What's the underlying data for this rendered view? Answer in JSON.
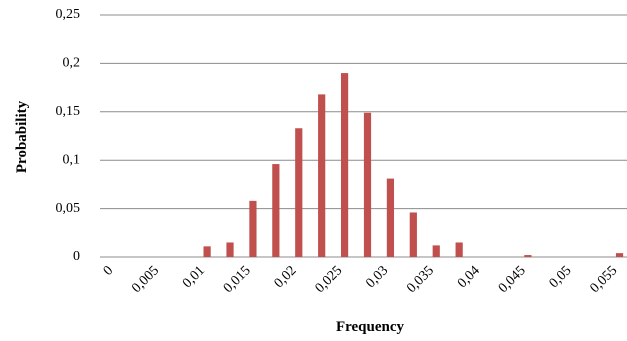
{
  "chart_data": {
    "type": "bar",
    "x_label": "Frequency",
    "y_label": "Probability",
    "categories": [
      "0",
      null,
      "0,005",
      null,
      "0,01",
      null,
      "0,015",
      null,
      "0,02",
      null,
      "0,025",
      null,
      "0,03",
      null,
      "0,035",
      null,
      "0,04",
      null,
      "0,045",
      null,
      "0,05",
      null,
      "0,055"
    ],
    "values": [
      0,
      0,
      0,
      0,
      0.011,
      0.015,
      0.058,
      0.096,
      0.133,
      0.168,
      0.19,
      0.149,
      0.081,
      0.046,
      0.012,
      0.015,
      0,
      0,
      0.002,
      0,
      0,
      0,
      0.004
    ],
    "color": "#c0504d",
    "ylim": [
      0,
      0.25
    ],
    "yticks": [
      0,
      {
        "value": 0.05,
        "label": "0,05"
      },
      {
        "value": 0.1,
        "label": "0,1"
      },
      {
        "value": 0.15,
        "label": "0,15"
      },
      {
        "value": 0.2,
        "label": "0,2"
      },
      {
        "value": 0.25,
        "label": "0,25"
      }
    ],
    "grid": true
  }
}
